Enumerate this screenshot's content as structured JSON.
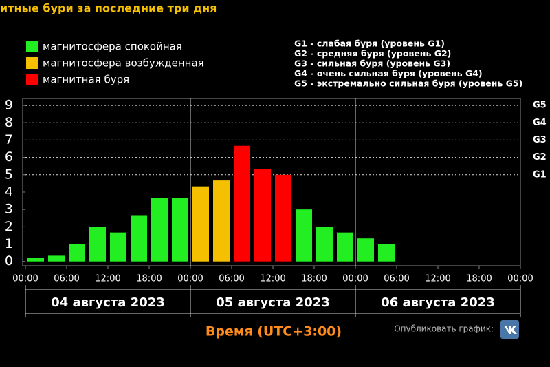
{
  "title": "итные бури за последние три дня",
  "chart_data": {
    "type": "bar",
    "legend": [
      {
        "name": "магнитосфера спокойная",
        "color": "#22ee22"
      },
      {
        "name": "магнитосфера возбужденная",
        "color": "#f5c000"
      },
      {
        "name": "магнитная буря",
        "color": "#ff0000"
      }
    ],
    "scale_notes": [
      "G1 - слабая буря (уровень G1)",
      "G2 - средняя буря (уровень G2)",
      "G3 - сильная буря (уровень G3)",
      "G4 - очень сильная буря (уровень G4)",
      "G5 - экстремально сильная буря (уровень G5)"
    ],
    "x": [
      0,
      3,
      6,
      9,
      12,
      15,
      18,
      21,
      24,
      27,
      30,
      33,
      36,
      39,
      42,
      45,
      48,
      51
    ],
    "values": [
      0.2,
      0.33,
      1,
      2,
      1.67,
      2.67,
      3.67,
      3.67,
      4.33,
      4.67,
      6.67,
      5.33,
      5,
      3,
      2,
      1.67,
      1.33,
      1
    ],
    "colors": [
      "#22ee22",
      "#22ee22",
      "#22ee22",
      "#22ee22",
      "#22ee22",
      "#22ee22",
      "#22ee22",
      "#22ee22",
      "#f5c000",
      "#f5c000",
      "#ff0000",
      "#ff0000",
      "#ff0000",
      "#22ee22",
      "#22ee22",
      "#22ee22",
      "#22ee22",
      "#22ee22"
    ],
    "xlim": [
      0,
      72
    ],
    "xticks": [
      {
        "value": 0,
        "label": "00:00"
      },
      {
        "value": 6,
        "label": "06:00"
      },
      {
        "value": 12,
        "label": "12:00"
      },
      {
        "value": 18,
        "label": "18:00"
      },
      {
        "value": 24,
        "label": "00:00"
      },
      {
        "value": 30,
        "label": "06:00"
      },
      {
        "value": 36,
        "label": "12:00"
      },
      {
        "value": 42,
        "label": "18:00"
      },
      {
        "value": 48,
        "label": "00:00"
      },
      {
        "value": 54,
        "label": "06:00"
      },
      {
        "value": 60,
        "label": "12:00"
      },
      {
        "value": 66,
        "label": "18:00"
      },
      {
        "value": 72,
        "label": "00:00"
      }
    ],
    "ylim": [
      -0.25,
      9.4
    ],
    "yticks": [
      0,
      1,
      2,
      3,
      4,
      5,
      6,
      7,
      8,
      9
    ],
    "y2ticks": [
      {
        "value": 5,
        "label": "G1"
      },
      {
        "value": 6,
        "label": "G2"
      },
      {
        "value": 7,
        "label": "G3"
      },
      {
        "value": 8,
        "label": "G4"
      },
      {
        "value": 9,
        "label": "G5"
      }
    ],
    "days": [
      "04 августа 2023",
      "05 августа 2023",
      "06 августа 2023"
    ],
    "xlabel": "Время (UTC+3:00)",
    "publish": "Опубликовать график:"
  }
}
